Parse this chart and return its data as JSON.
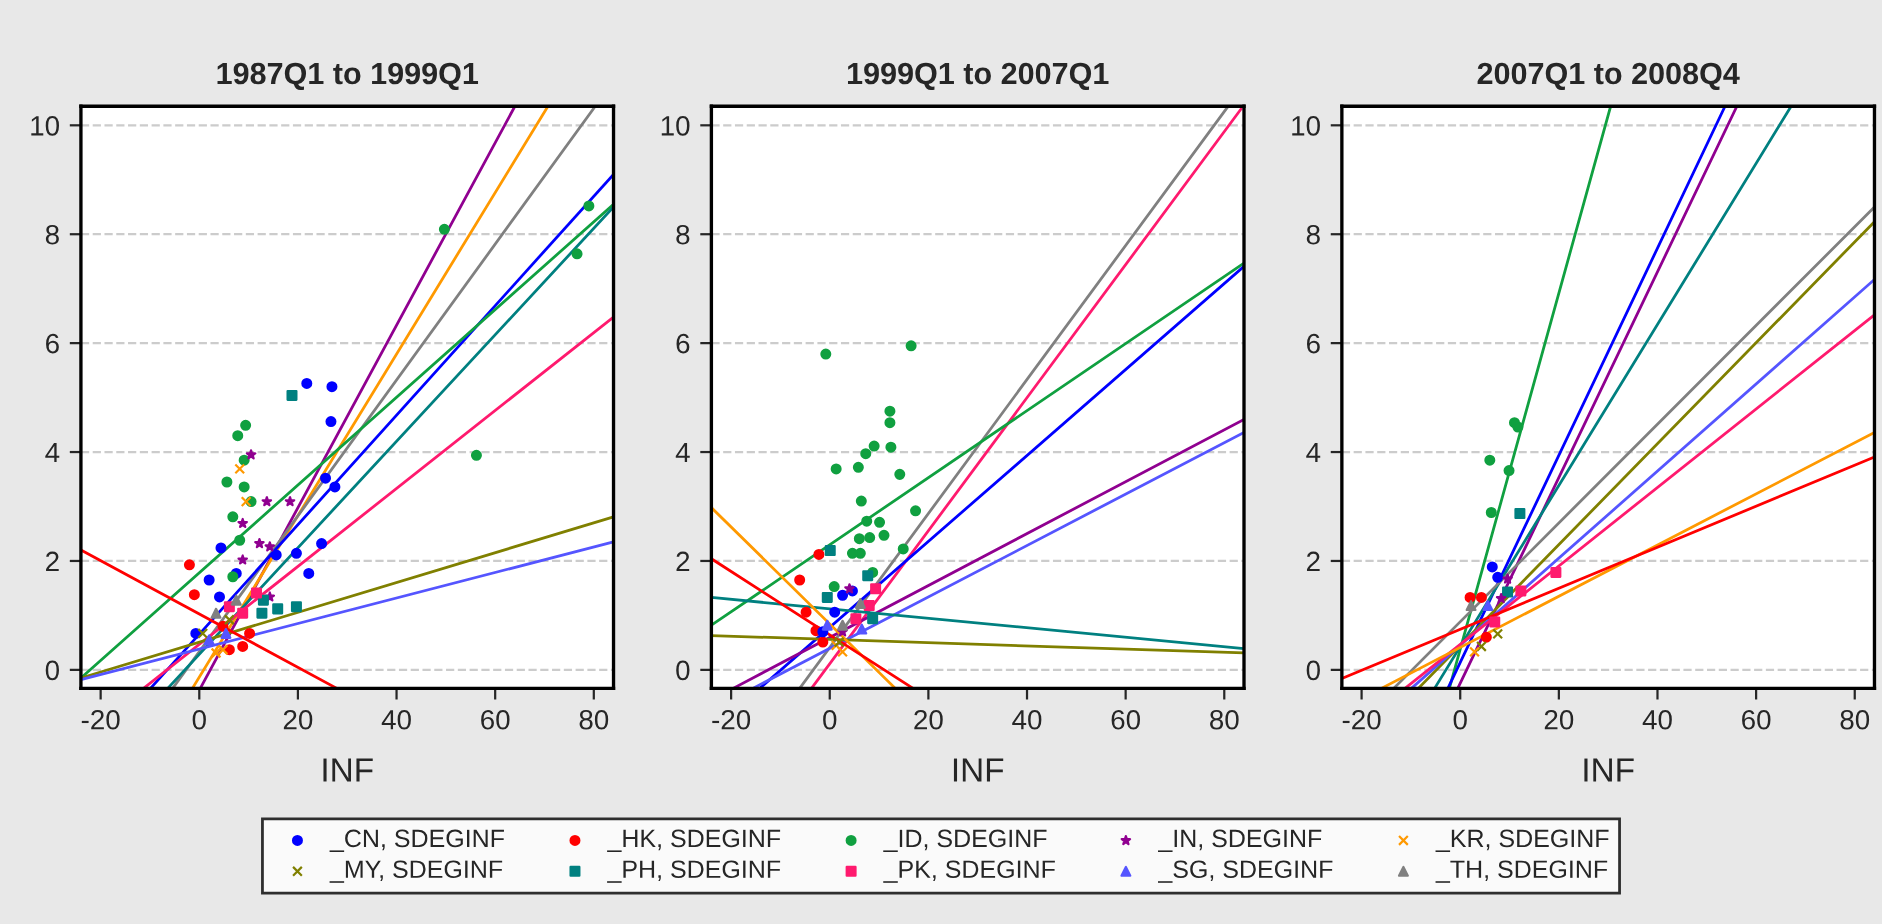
{
  "chart_data": [
    {
      "type": "scatter",
      "title": "1987Q1 to 1999Q1",
      "xlabel": "INF",
      "xlim": [
        -24,
        84
      ],
      "ylim": [
        -0.34,
        10.35
      ],
      "xticks": [
        -20,
        0,
        20,
        40,
        60,
        80
      ],
      "yticks": [
        0,
        2,
        4,
        6,
        8,
        10
      ],
      "grid": "y",
      "legend": "bottom",
      "series": [
        {
          "name": "_CN, SDEGINF",
          "color": "#0000ff",
          "marker": "circle",
          "x": [
            21.8,
            26.9,
            26.7,
            27.5,
            25.6,
            22.2,
            24.8,
            15.6,
            4.4,
            2.0,
            -0.7,
            4.1,
            7.5,
            19.7
          ],
          "values": [
            5.26,
            5.2,
            4.56,
            3.36,
            3.52,
            1.77,
            2.32,
            2.11,
            2.24,
            1.65,
            0.67,
            1.34,
            1.77,
            2.14
          ]
        },
        {
          "name": "_HK, SDEGINF",
          "color": "#ff0000",
          "marker": "circle",
          "x": [
            -2.0,
            -1.0,
            6.1,
            8.8,
            10.2,
            4.8
          ],
          "values": [
            1.93,
            1.38,
            0.37,
            0.43,
            0.67,
            0.8
          ]
        },
        {
          "name": "_ID, SDEGINF",
          "color": "#10a040",
          "marker": "circle",
          "x": [
            49.7,
            79,
            76.6,
            56.2,
            9.4,
            7.8,
            5.6,
            9.1,
            9.1,
            6.8,
            10.5,
            8.2,
            6.8
          ],
          "values": [
            8.09,
            8.52,
            7.64,
            3.94,
            4.49,
            4.3,
            3.45,
            3.36,
            3.85,
            2.81,
            3.09,
            2.38,
            1.71
          ]
        },
        {
          "name": "_IN, SDEGINF",
          "color": "#900090",
          "marker": "star",
          "x": [
            10.5,
            13.7,
            18.4,
            8.8,
            12.2,
            14.3,
            14.3,
            8.8
          ],
          "values": [
            3.95,
            3.09,
            3.09,
            2.69,
            2.32,
            2.26,
            1.34,
            2.02
          ]
        },
        {
          "name": "_KR, SDEGINF",
          "color": "#ff9900",
          "marker": "cross",
          "x": [
            8.2,
            9.5,
            3.4,
            4.8
          ],
          "values": [
            3.69,
            3.09,
            0.31,
            0.37
          ]
        },
        {
          "name": "_MY, SDEGINF",
          "color": "#808000",
          "marker": "cross",
          "x": [
            0.7,
            6.1
          ],
          "values": [
            0.67,
            0.92
          ]
        },
        {
          "name": "_PH, SDEGINF",
          "color": "#008080",
          "marker": "square",
          "x": [
            18.8,
            19.7,
            15.9,
            12.7,
            13.0
          ],
          "values": [
            5.04,
            1.16,
            1.12,
            1.04,
            1.28
          ]
        },
        {
          "name": "_PK, SDEGINF",
          "color": "#ff1a6e",
          "marker": "square",
          "x": [
            11.6,
            8.8,
            6.1
          ],
          "values": [
            1.41,
            1.04,
            1.16
          ]
        },
        {
          "name": "_SG, SDEGINF",
          "color": "#5555ff",
          "marker": "triangle",
          "x": [
            2.0,
            5.4
          ],
          "values": [
            0.55,
            0.67
          ]
        },
        {
          "name": "_TH, SDEGINF",
          "color": "#808080",
          "marker": "triangle",
          "x": [
            3.4,
            7.5
          ],
          "values": [
            1.04,
            1.28
          ]
        },
        {
          "type": "line",
          "color": "#900090",
          "x": [
            0.2,
            64
          ],
          "values": [
            -0.34,
            10.35
          ]
        },
        {
          "type": "line",
          "color": "#ff9900",
          "x": [
            -1.4,
            70.7
          ],
          "values": [
            -0.34,
            10.35
          ]
        },
        {
          "type": "line",
          "color": "#808080",
          "x": [
            -5.4,
            80.3
          ],
          "values": [
            -0.34,
            10.35
          ]
        },
        {
          "type": "line",
          "color": "#0000ff",
          "x": [
            -9.9,
            84
          ],
          "values": [
            -0.34,
            9.1
          ]
        },
        {
          "type": "line",
          "color": "#10a040",
          "x": [
            -24,
            84
          ],
          "values": [
            -0.15,
            8.55
          ]
        },
        {
          "type": "line",
          "color": "#008080",
          "x": [
            -6.4,
            84
          ],
          "values": [
            -0.34,
            8.5
          ]
        },
        {
          "type": "line",
          "color": "#ff1a6e",
          "x": [
            -11.3,
            84
          ],
          "values": [
            -0.34,
            6.48
          ]
        },
        {
          "type": "line",
          "color": "#808000",
          "x": [
            -24,
            84
          ],
          "values": [
            -0.15,
            2.81
          ]
        },
        {
          "type": "line",
          "color": "#5555ff",
          "x": [
            -24,
            84
          ],
          "values": [
            -0.18,
            2.35
          ]
        },
        {
          "type": "line",
          "color": "#ff0000",
          "x": [
            -24,
            27.9
          ],
          "values": [
            2.2,
            -0.34
          ]
        }
      ]
    },
    {
      "type": "scatter",
      "title": "1999Q1 to 2007Q1",
      "xlabel": "INF",
      "xlim": [
        -24,
        84
      ],
      "ylim": [
        -0.34,
        10.35
      ],
      "xticks": [
        -20,
        0,
        20,
        40,
        60,
        80
      ],
      "yticks": [
        0,
        2,
        4,
        6,
        8,
        10
      ],
      "grid": "y",
      "series": [
        {
          "color": "#10a040",
          "marker": "circle",
          "x": [
            -0.8,
            16.5,
            12.2,
            12.2,
            9.0,
            7.3,
            12.4,
            1.3,
            5.8,
            14.2,
            6.4,
            17.4,
            10.1,
            7.5,
            11.0,
            6.0,
            8.1,
            4.6,
            6.2,
            0.9,
            14.9,
            8.7
          ],
          "values": [
            5.8,
            5.95,
            4.75,
            4.54,
            4.11,
            3.97,
            4.09,
            3.69,
            3.72,
            3.59,
            3.1,
            2.92,
            2.71,
            2.73,
            2.47,
            2.41,
            2.43,
            2.14,
            2.14,
            1.53,
            2.22,
            1.79
          ]
        },
        {
          "color": "#ff0000",
          "marker": "circle",
          "x": [
            -2.2,
            -6.1,
            -4.8,
            -2.8,
            -1.4
          ],
          "values": [
            2.12,
            1.65,
            1.06,
            0.72,
            0.51
          ]
        },
        {
          "color": "#008080",
          "marker": "square",
          "x": [
            0.1,
            -0.5,
            7.7,
            8.7
          ],
          "values": [
            2.19,
            1.33,
            1.73,
            0.94
          ]
        },
        {
          "color": "#0000ff",
          "marker": "circle",
          "x": [
            1.0,
            2.6,
            4.6,
            -1.4
          ],
          "values": [
            1.06,
            1.37,
            1.45,
            0.7
          ]
        },
        {
          "color": "#900090",
          "marker": "star",
          "x": [
            4.0,
            2.6
          ],
          "values": [
            1.49,
            0.7
          ]
        },
        {
          "color": "#ff1a6e",
          "marker": "square",
          "x": [
            9.3,
            8.0,
            5.3
          ],
          "values": [
            1.49,
            1.18,
            0.94
          ]
        },
        {
          "color": "#ff9900",
          "marker": "cross",
          "x": [
            2.6,
            1.3
          ],
          "values": [
            0.33,
            0.45
          ]
        },
        {
          "color": "#808000",
          "marker": "cross",
          "x": [
            1.9
          ],
          "values": [
            0.51
          ]
        },
        {
          "color": "#5555ff",
          "marker": "triangle",
          "x": [
            6.5,
            -0.5
          ],
          "values": [
            0.75,
            0.82
          ]
        },
        {
          "color": "#808080",
          "marker": "triangle",
          "x": [
            2.6,
            6.2
          ],
          "values": [
            0.82,
            1.22
          ]
        },
        {
          "type": "line",
          "color": "#808080",
          "x": [
            -6.1,
            80.7
          ],
          "values": [
            -0.34,
            10.34
          ]
        },
        {
          "type": "line",
          "color": "#ff1a6e",
          "x": [
            -3.7,
            83.4
          ],
          "values": [
            -0.34,
            10.3
          ]
        },
        {
          "type": "line",
          "color": "#10a040",
          "x": [
            -24,
            84
          ],
          "values": [
            0.82,
            7.47
          ]
        },
        {
          "type": "line",
          "color": "#0000ff",
          "x": [
            -14.2,
            84
          ],
          "values": [
            -0.34,
            7.41
          ]
        },
        {
          "type": "line",
          "color": "#900090",
          "x": [
            -19.6,
            84
          ],
          "values": [
            -0.34,
            4.6
          ]
        },
        {
          "type": "line",
          "color": "#5555ff",
          "x": [
            -15.6,
            84
          ],
          "values": [
            -0.34,
            4.36
          ]
        },
        {
          "type": "line",
          "color": "#008080",
          "x": [
            -24,
            84
          ],
          "values": [
            1.33,
            0.39
          ]
        },
        {
          "type": "line",
          "color": "#808000",
          "x": [
            -24,
            84
          ],
          "values": [
            0.63,
            0.31
          ]
        },
        {
          "type": "line",
          "color": "#ff9900",
          "x": [
            -24,
            13.3
          ],
          "values": [
            2.98,
            -0.34
          ]
        },
        {
          "type": "line",
          "color": "#ff0000",
          "x": [
            -24,
            16.9
          ],
          "values": [
            2.04,
            -0.34
          ]
        }
      ]
    },
    {
      "type": "scatter",
      "title": "2007Q1 to 2008Q4",
      "xlabel": "INF",
      "xlim": [
        -24,
        84
      ],
      "ylim": [
        -0.34,
        10.35
      ],
      "xticks": [
        -20,
        0,
        20,
        40,
        60,
        80
      ],
      "yticks": [
        0,
        2,
        4,
        6,
        8,
        10
      ],
      "grid": "y",
      "series": [
        {
          "color": "#10a040",
          "marker": "circle",
          "x": [
            11.0,
            11.7,
            6.0,
            9.9,
            6.3
          ],
          "values": [
            4.54,
            4.46,
            3.85,
            3.66,
            2.89
          ]
        },
        {
          "color": "#008080",
          "marker": "square",
          "x": [
            12.1,
            9.6
          ],
          "values": [
            2.87,
            1.43
          ]
        },
        {
          "color": "#0000ff",
          "marker": "circle",
          "x": [
            6.5,
            7.6
          ],
          "values": [
            1.89,
            1.7
          ]
        },
        {
          "color": "#ff1a6e",
          "marker": "square",
          "x": [
            19.4,
            12.3,
            7.0
          ],
          "values": [
            1.79,
            1.45,
            0.88
          ]
        },
        {
          "color": "#ff0000",
          "marker": "circle",
          "x": [
            2.0,
            4.3,
            5.3
          ],
          "values": [
            1.33,
            1.33,
            0.6
          ]
        },
        {
          "color": "#808000",
          "marker": "cross",
          "x": [
            7.6,
            4.3
          ],
          "values": [
            0.66,
            0.43
          ]
        },
        {
          "color": "#900090",
          "marker": "star",
          "x": [
            9.6,
            8.3
          ],
          "values": [
            1.67,
            1.31
          ]
        },
        {
          "color": "#ff9900",
          "marker": "cross",
          "x": [
            2.9
          ],
          "values": [
            0.33
          ]
        },
        {
          "color": "#5555ff",
          "marker": "triangle",
          "x": [
            5.6
          ],
          "values": [
            1.18
          ]
        },
        {
          "color": "#808080",
          "marker": "triangle",
          "x": [
            2.2
          ],
          "values": [
            1.18
          ]
        },
        {
          "type": "line",
          "color": "#10a040",
          "x": [
            -2.2,
            30.5
          ],
          "values": [
            -0.34,
            10.35
          ]
        },
        {
          "type": "line",
          "color": "#0000ff",
          "x": [
            -2.5,
            53.7
          ],
          "values": [
            -0.34,
            10.35
          ]
        },
        {
          "type": "line",
          "color": "#900090",
          "x": [
            -0.5,
            56.1
          ],
          "values": [
            -0.34,
            10.35
          ]
        },
        {
          "type": "line",
          "color": "#008080",
          "x": [
            -5.2,
            67.1
          ],
          "values": [
            -0.34,
            10.35
          ]
        },
        {
          "type": "line",
          "color": "#808080",
          "x": [
            -13.5,
            84
          ],
          "values": [
            -0.34,
            8.5
          ]
        },
        {
          "type": "line",
          "color": "#808000",
          "x": [
            -8.5,
            84
          ],
          "values": [
            -0.34,
            8.23
          ]
        },
        {
          "type": "line",
          "color": "#5555ff",
          "x": [
            -9.9,
            84
          ],
          "values": [
            -0.34,
            7.17
          ]
        },
        {
          "type": "line",
          "color": "#ff1a6e",
          "x": [
            -11.2,
            84
          ],
          "values": [
            -0.34,
            6.52
          ]
        },
        {
          "type": "line",
          "color": "#ff9900",
          "x": [
            -16,
            84
          ],
          "values": [
            -0.34,
            4.36
          ]
        },
        {
          "type": "line",
          "color": "#ff0000",
          "x": [
            -24,
            84
          ],
          "values": [
            -0.16,
            3.91
          ]
        }
      ]
    }
  ]
}
